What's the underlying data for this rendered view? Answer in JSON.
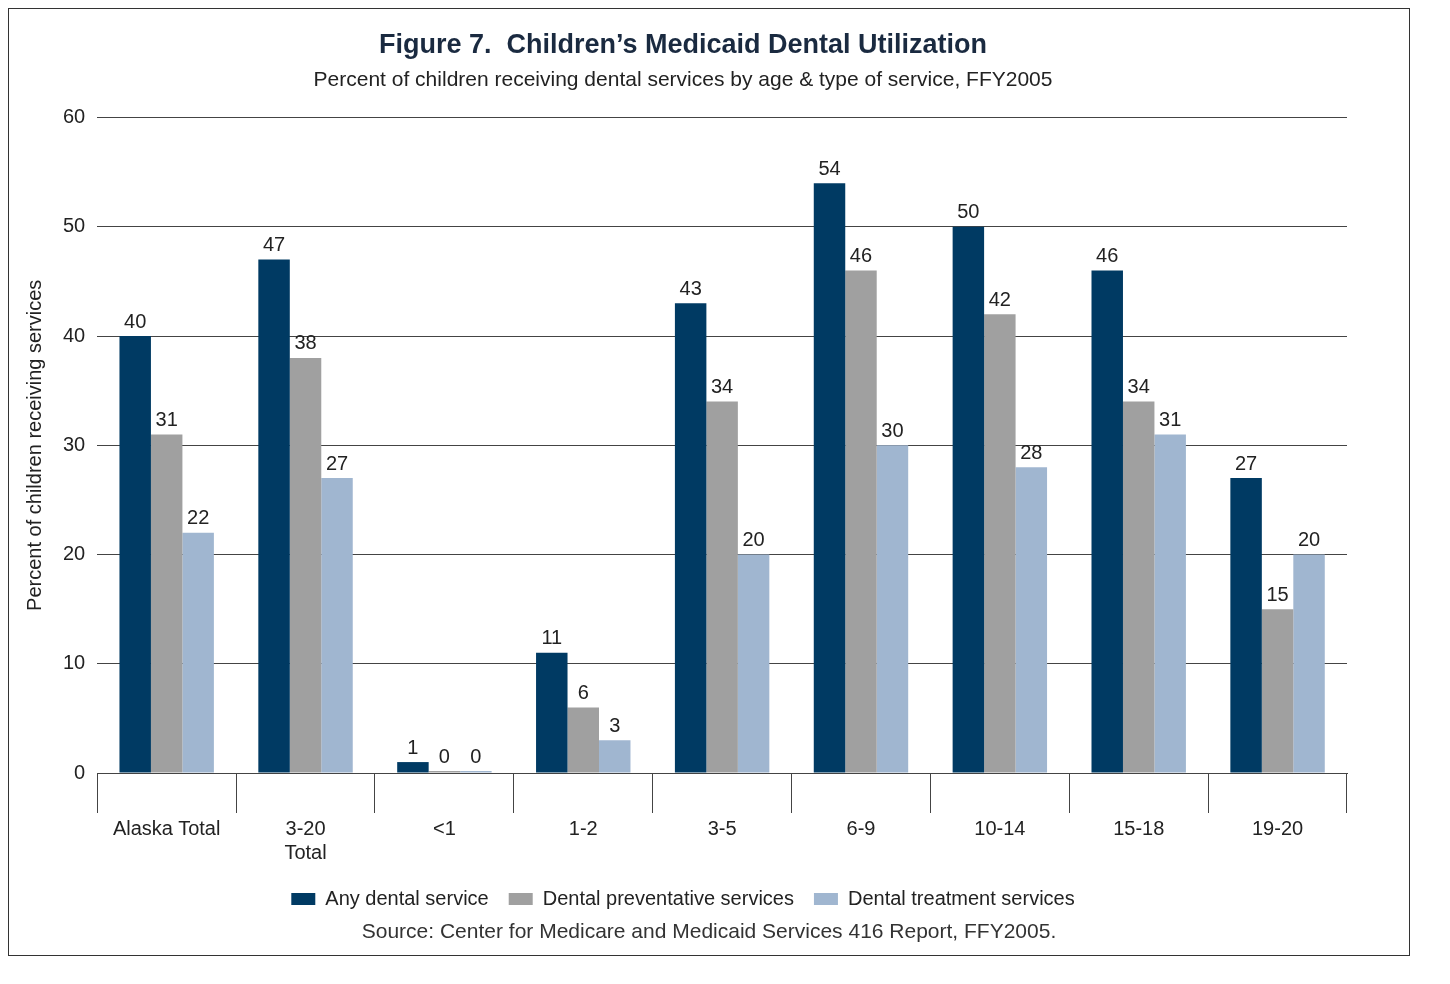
{
  "chart_data": {
    "type": "bar",
    "title": "Figure 7.  Children’s Medicaid Dental Utilization",
    "subtitle": "Percent of children receiving dental services by age & type of service, FFY2005",
    "ylabel": "Percent of children receiving services",
    "categories": [
      "Alaska Total",
      "3-20\nTotal",
      "<1",
      "1-2",
      "3-5",
      "6-9",
      "10-14",
      "15-18",
      "19-20"
    ],
    "series": [
      {
        "name": "Any dental service",
        "color": "#003a63",
        "values": [
          40,
          47,
          1,
          11,
          43,
          54,
          50,
          46,
          27
        ]
      },
      {
        "name": "Dental preventative services",
        "color": "#a0a0a0",
        "values": [
          31,
          38,
          0,
          6,
          34,
          46,
          42,
          34,
          15
        ]
      },
      {
        "name": "Dental treatment services",
        "color": "#a0b6d0",
        "values": [
          22,
          27,
          0,
          3,
          20,
          30,
          28,
          31,
          20
        ]
      }
    ],
    "ylim": [
      0,
      60
    ],
    "yticks": [
      0,
      10,
      20,
      30,
      40,
      50,
      60
    ],
    "grid": "y",
    "legend": "bottom",
    "data_labels": true,
    "annotations": [
      "Source: Center for Medicare and Medicaid Services 416 Report, FFY2005."
    ]
  }
}
